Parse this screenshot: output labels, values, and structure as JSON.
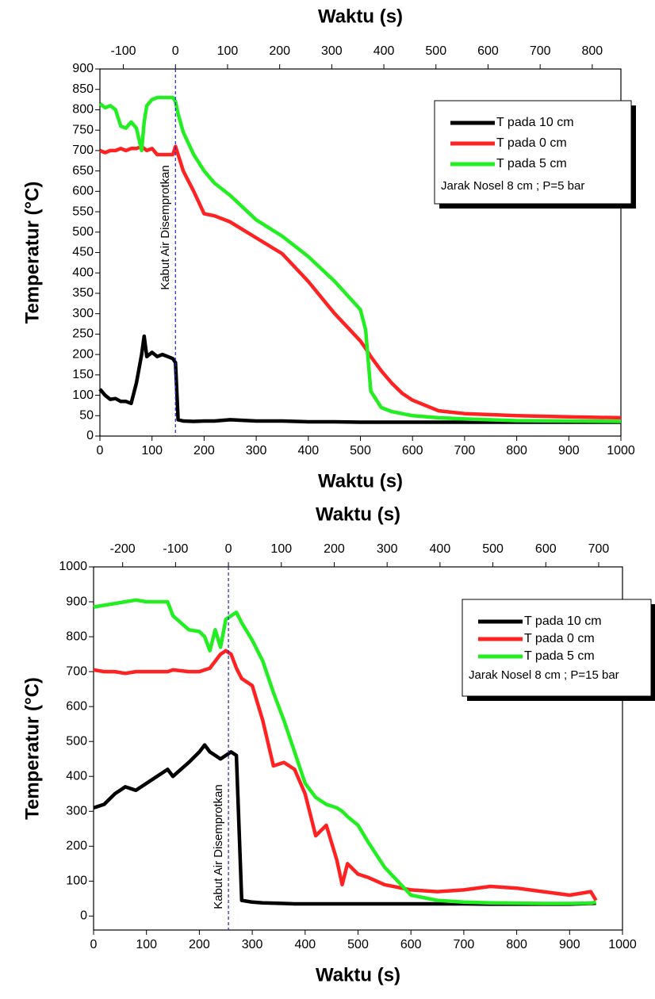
{
  "chart_data": [
    {
      "type": "line",
      "x_label": "Waktu (s)",
      "x2_label": "Waktu (s)",
      "y_label": "Temperatur (°C)",
      "xlim": [
        0,
        1000
      ],
      "xticks": [
        0,
        100,
        200,
        300,
        400,
        500,
        600,
        700,
        800,
        900,
        1000
      ],
      "x2lim": [
        -145,
        855
      ],
      "x2ticks": [
        -100,
        0,
        100,
        200,
        300,
        400,
        500,
        600,
        700,
        800
      ],
      "ylim": [
        0,
        900
      ],
      "yticks": [
        0,
        50,
        100,
        150,
        200,
        250,
        300,
        350,
        400,
        450,
        500,
        550,
        600,
        650,
        700,
        750,
        800,
        850,
        900
      ],
      "annotation": {
        "text": "Kabut Air Disemprotkan",
        "x": 145
      },
      "legend": "upper right",
      "legend_note": "Jarak Nosel 8 cm ; P=5 bar",
      "x": [
        0,
        10,
        20,
        30,
        40,
        50,
        60,
        70,
        80,
        85,
        90,
        100,
        110,
        120,
        130,
        140,
        145,
        150,
        160,
        180,
        200,
        220,
        250,
        300,
        350,
        400,
        450,
        500,
        510,
        520,
        540,
        560,
        580,
        600,
        650,
        700,
        800,
        900,
        1000
      ],
      "series": [
        {
          "name": "T pada 10 cm",
          "color": "#000000",
          "values": [
            115,
            100,
            90,
            92,
            85,
            85,
            80,
            130,
            200,
            245,
            195,
            205,
            195,
            200,
            195,
            190,
            180,
            40,
            37,
            36,
            37,
            37,
            40,
            37,
            37,
            35,
            35,
            34,
            34,
            34,
            34,
            34,
            34,
            34,
            34,
            34,
            34,
            34,
            34
          ]
        },
        {
          "name": "T pada 0 cm",
          "color": "#ff2222",
          "values": [
            700,
            695,
            700,
            700,
            705,
            700,
            705,
            705,
            710,
            705,
            700,
            705,
            690,
            690,
            690,
            690,
            710,
            690,
            650,
            600,
            545,
            540,
            525,
            486,
            447,
            379,
            301,
            233,
            215,
            195,
            160,
            130,
            105,
            88,
            62,
            55,
            50,
            47,
            45
          ]
        },
        {
          "name": "T pada 5 cm",
          "color": "#22ee22",
          "values": [
            815,
            805,
            810,
            800,
            760,
            755,
            770,
            755,
            700,
            770,
            810,
            825,
            830,
            830,
            830,
            830,
            820,
            790,
            745,
            690,
            650,
            620,
            590,
            530,
            490,
            440,
            380,
            310,
            260,
            110,
            70,
            60,
            55,
            50,
            45,
            42,
            38,
            37,
            36
          ]
        }
      ]
    },
    {
      "type": "line",
      "x_label": "Waktu (s)",
      "x2_label": "Waktu (s)",
      "y_label": "Temperatur (°C)",
      "xlim": [
        0,
        1000
      ],
      "xticks": [
        0,
        100,
        200,
        300,
        400,
        500,
        600,
        700,
        800,
        900,
        1000
      ],
      "x2lim": [
        -255,
        745
      ],
      "x2ticks": [
        -200,
        -100,
        0,
        100,
        200,
        300,
        400,
        500,
        600,
        700
      ],
      "ylim": [
        -40,
        1000
      ],
      "yticks": [
        0,
        100,
        200,
        300,
        400,
        500,
        600,
        700,
        800,
        900,
        1000
      ],
      "annotation": {
        "text": "Kabut Air Disemprotkan",
        "x": 255
      },
      "legend": "upper right",
      "legend_note": "Jarak Nosel 8 cm ; P=15 bar",
      "x": [
        0,
        20,
        40,
        60,
        80,
        100,
        140,
        150,
        180,
        200,
        210,
        220,
        230,
        240,
        250,
        260,
        270,
        280,
        300,
        320,
        340,
        360,
        380,
        400,
        420,
        440,
        460,
        470,
        480,
        500,
        520,
        550,
        600,
        650,
        700,
        750,
        800,
        850,
        900,
        940,
        950
      ],
      "series": [
        {
          "name": "T pada 10 cm",
          "color": "#000000",
          "values": [
            310,
            320,
            350,
            370,
            360,
            380,
            420,
            400,
            440,
            470,
            490,
            470,
            460,
            450,
            460,
            470,
            460,
            45,
            40,
            38,
            37,
            36,
            35,
            35,
            35,
            35,
            35,
            35,
            35,
            35,
            35,
            35,
            35,
            35,
            35,
            34,
            34,
            34,
            34,
            36,
            37
          ]
        },
        {
          "name": "T pada 0 cm",
          "color": "#ff2222",
          "values": [
            705,
            700,
            700,
            695,
            700,
            700,
            700,
            705,
            700,
            700,
            705,
            710,
            730,
            750,
            760,
            750,
            710,
            680,
            660,
            560,
            430,
            440,
            420,
            350,
            230,
            260,
            160,
            90,
            150,
            120,
            110,
            90,
            75,
            70,
            75,
            85,
            80,
            70,
            60,
            70,
            45
          ]
        },
        {
          "name": "T pada 5 cm",
          "color": "#22ee22",
          "values": [
            885,
            890,
            895,
            900,
            905,
            900,
            900,
            860,
            820,
            815,
            800,
            760,
            820,
            770,
            850,
            860,
            870,
            840,
            790,
            730,
            640,
            560,
            470,
            380,
            340,
            320,
            310,
            300,
            285,
            260,
            210,
            140,
            60,
            45,
            40,
            38,
            37,
            36,
            36,
            37,
            40
          ]
        }
      ]
    }
  ]
}
